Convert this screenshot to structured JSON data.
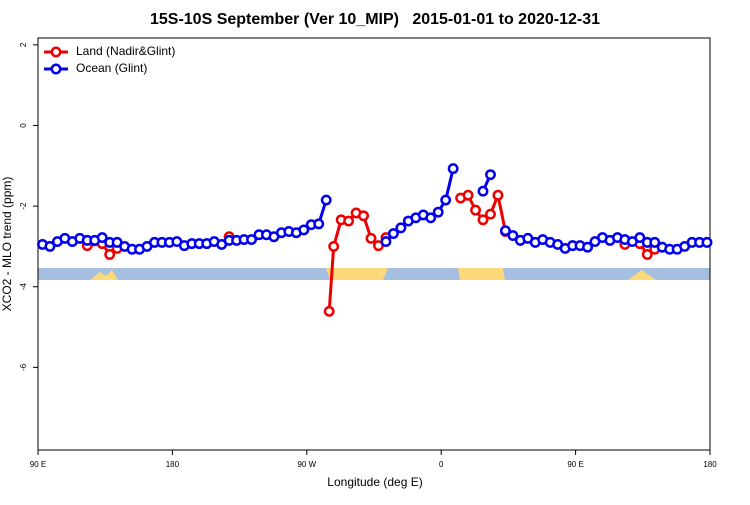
{
  "chart_data": {
    "type": "line",
    "title": "15S-10S September (Ver 10_MIP)   2015-01-01 to 2020-12-31",
    "x_label": "Longitude (deg E)",
    "y_label": "XCO2 - MLO trend (ppm)",
    "xlim": [
      90,
      540
    ],
    "ylim": [
      -8.05,
      2.17
    ],
    "xticks": [
      {
        "value": 90,
        "label": "90 E"
      },
      180,
      {
        "value": 270,
        "label": "90 W"
      },
      {
        "value": 360,
        "label": "0"
      },
      {
        "value": 450,
        "label": "90 E"
      },
      {
        "value": 540,
        "label": "180"
      }
    ],
    "yticks": [
      2,
      0,
      -2,
      -4,
      -6
    ],
    "legend": "top-left",
    "series": [
      {
        "name": "Land (Nadir&Glint)",
        "color": "#ee0000",
        "x": [
          123,
          133,
          138,
          143,
          148,
          218,
          223,
          285,
          288,
          293,
          298,
          303,
          308,
          313,
          318,
          323,
          328,
          373,
          378,
          383,
          388,
          393,
          398,
          403,
          408,
          483,
          493,
          498,
          503
        ],
        "values": [
          -2.98,
          -2.93,
          -3.2,
          -3.05,
          null,
          -2.76,
          null,
          -4.61,
          -3.0,
          -2.34,
          -2.37,
          -2.17,
          -2.24,
          -2.8,
          -2.98,
          -2.78,
          null,
          -1.8,
          -1.73,
          -2.1,
          -2.34,
          -2.2,
          -1.73,
          -2.63,
          null,
          -2.95,
          -2.93,
          -3.2,
          -3.07
        ]
      },
      {
        "name": "Ocean (Glint)",
        "color": "#0000ee",
        "x": [
          93,
          98,
          103,
          108,
          113,
          118,
          123,
          128,
          133,
          138,
          143,
          148,
          153,
          158,
          163,
          168,
          173,
          178,
          183,
          188,
          193,
          198,
          203,
          208,
          213,
          218,
          223,
          228,
          233,
          238,
          243,
          248,
          253,
          258,
          263,
          268,
          273,
          278,
          283,
          288,
          323,
          328,
          333,
          338,
          343,
          348,
          353,
          358,
          363,
          368,
          373,
          388,
          393,
          398,
          403,
          408,
          413,
          418,
          423,
          428,
          433,
          438,
          443,
          448,
          453,
          458,
          463,
          468,
          473,
          478,
          483,
          488,
          493,
          498,
          503,
          508,
          513,
          518,
          523,
          528,
          533,
          538
        ],
        "values": [
          -2.95,
          -3.0,
          -2.88,
          -2.8,
          -2.88,
          -2.8,
          -2.85,
          -2.85,
          -2.78,
          -2.9,
          -2.9,
          -3.0,
          -3.07,
          -3.07,
          -3.0,
          -2.9,
          -2.9,
          -2.9,
          -2.88,
          -2.98,
          -2.93,
          -2.93,
          -2.93,
          -2.88,
          -2.95,
          -2.85,
          -2.85,
          -2.83,
          -2.83,
          -2.71,
          -2.71,
          -2.76,
          -2.66,
          -2.63,
          -2.66,
          -2.59,
          -2.46,
          -2.44,
          -1.85,
          null,
          -2.88,
          -2.68,
          -2.54,
          -2.37,
          -2.29,
          -2.22,
          -2.29,
          -2.15,
          -1.85,
          -1.07,
          null,
          -1.63,
          -1.22,
          null,
          -2.61,
          -2.73,
          -2.85,
          -2.8,
          -2.9,
          -2.83,
          -2.9,
          -2.95,
          -3.05,
          -2.98,
          -2.98,
          -3.02,
          -2.88,
          -2.78,
          -2.85,
          -2.78,
          -2.83,
          -2.88,
          -2.78,
          -2.9,
          -2.9,
          -3.02,
          -3.07,
          -3.07,
          -3.0,
          -2.9,
          -2.9,
          -2.9
        ]
      }
    ]
  }
}
